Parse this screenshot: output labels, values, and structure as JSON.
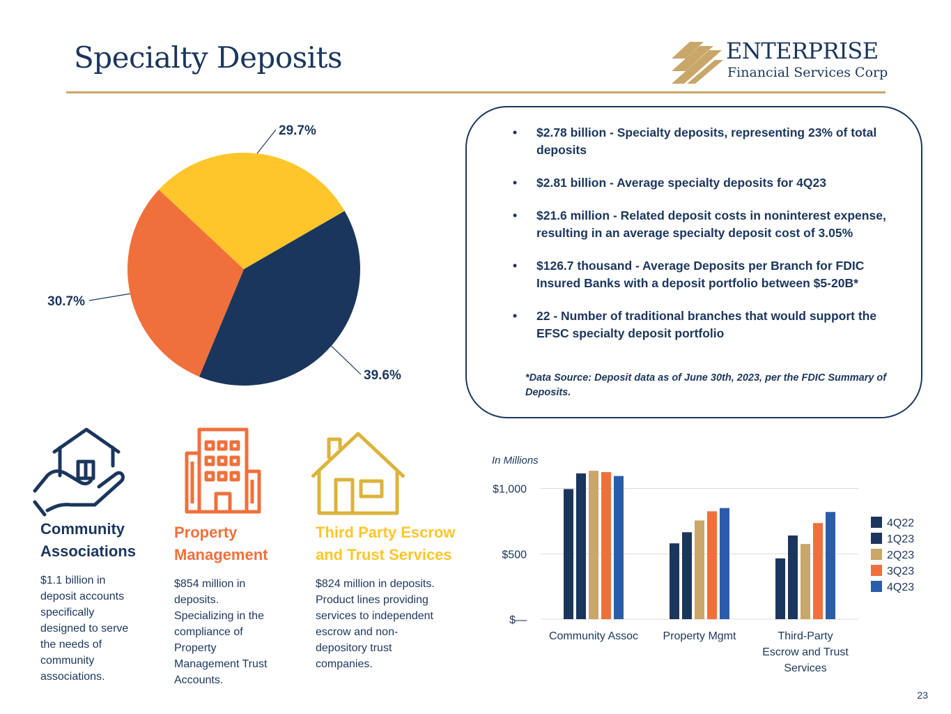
{
  "header": {
    "title": "Specialty Deposits",
    "logo_name": "ENTERPRISE",
    "logo_sub": "Financial Services Corp"
  },
  "colors": {
    "navy": "#1b365d",
    "gold": "#c9a669",
    "orange": "#f0703c",
    "yellow": "#fec62b",
    "blue": "#2a5caa"
  },
  "chart_data": [
    {
      "type": "pie",
      "slices": [
        {
          "label": "39.6%",
          "value": 39.6,
          "color": "#1b365d"
        },
        {
          "label": "30.7%",
          "value": 30.7,
          "color": "#f0703c"
        },
        {
          "label": "29.7%",
          "value": 29.7,
          "color": "#fec62b"
        }
      ]
    },
    {
      "type": "bar",
      "ylabel": "In Millions",
      "ylim": [
        0,
        1200
      ],
      "yticks": [
        {
          "value": 0,
          "label": "$—"
        },
        {
          "value": 500,
          "label": "$500"
        },
        {
          "value": 1000,
          "label": "$1,000"
        }
      ],
      "categories": [
        "Community Assoc",
        "Property Mgmt",
        "Third-Party Escrow and Trust Services"
      ],
      "category_lines": [
        [
          "Community Assoc"
        ],
        [
          "Property Mgmt"
        ],
        [
          "Third-Party",
          "Escrow and Trust",
          "Services"
        ]
      ],
      "series": [
        {
          "name": "4Q22",
          "color": "#1b365d",
          "values": [
            995,
            580,
            465
          ]
        },
        {
          "name": "1Q23",
          "color": "#1b365d",
          "values": [
            1115,
            665,
            640
          ]
        },
        {
          "name": "2Q23",
          "color": "#c9a669",
          "values": [
            1135,
            755,
            575
          ]
        },
        {
          "name": "3Q23",
          "color": "#f0703c",
          "values": [
            1125,
            825,
            735
          ]
        },
        {
          "name": "4Q23",
          "color": "#2a5caa",
          "values": [
            1095,
            850,
            820
          ]
        }
      ]
    }
  ],
  "callout": {
    "bullet_symbol": "•",
    "bullets": [
      "$2.78 billion - Specialty deposits, representing 23% of total deposits",
      "$2.81 billion - Average specialty deposits for 4Q23",
      "$21.6 million - Related deposit costs in noninterest expense, resulting in an average specialty deposit cost of 3.05%",
      "$126.7 thousand - Average Deposits per Branch for FDIC Insured Banks with a deposit portfolio between $5-20B*",
      "22 - Number of traditional branches that would support the EFSC specialty deposit portfolio"
    ],
    "footnote": "*Data Source: Deposit data as of June 30th, 2023, per the FDIC Summary of Deposits."
  },
  "segments": [
    {
      "title_lines": [
        "Community",
        "Associations"
      ],
      "color": "#1b365d",
      "icon": "house-in-hand-icon",
      "desc_lines": [
        "$1.1 billion in",
        "deposit accounts",
        "specifically",
        "designed to serve",
        "the needs of",
        "community",
        "associations."
      ]
    },
    {
      "title_lines": [
        "Property",
        "Management"
      ],
      "color": "#f0703c",
      "icon": "office-building-icon",
      "desc_lines": [
        "$854 million in",
        "deposits.",
        "Specializing in the",
        "compliance of",
        "Property",
        "Management Trust",
        "Accounts."
      ]
    },
    {
      "title_lines": [
        "Third Party Escrow",
        "and Trust Services"
      ],
      "color": "#fec62b",
      "icon": "house-icon",
      "desc_lines": [
        "$824 million in deposits.",
        "Product lines providing",
        "services to independent",
        "escrow and non-",
        "depository trust",
        "companies."
      ]
    }
  ],
  "page_number": "23"
}
